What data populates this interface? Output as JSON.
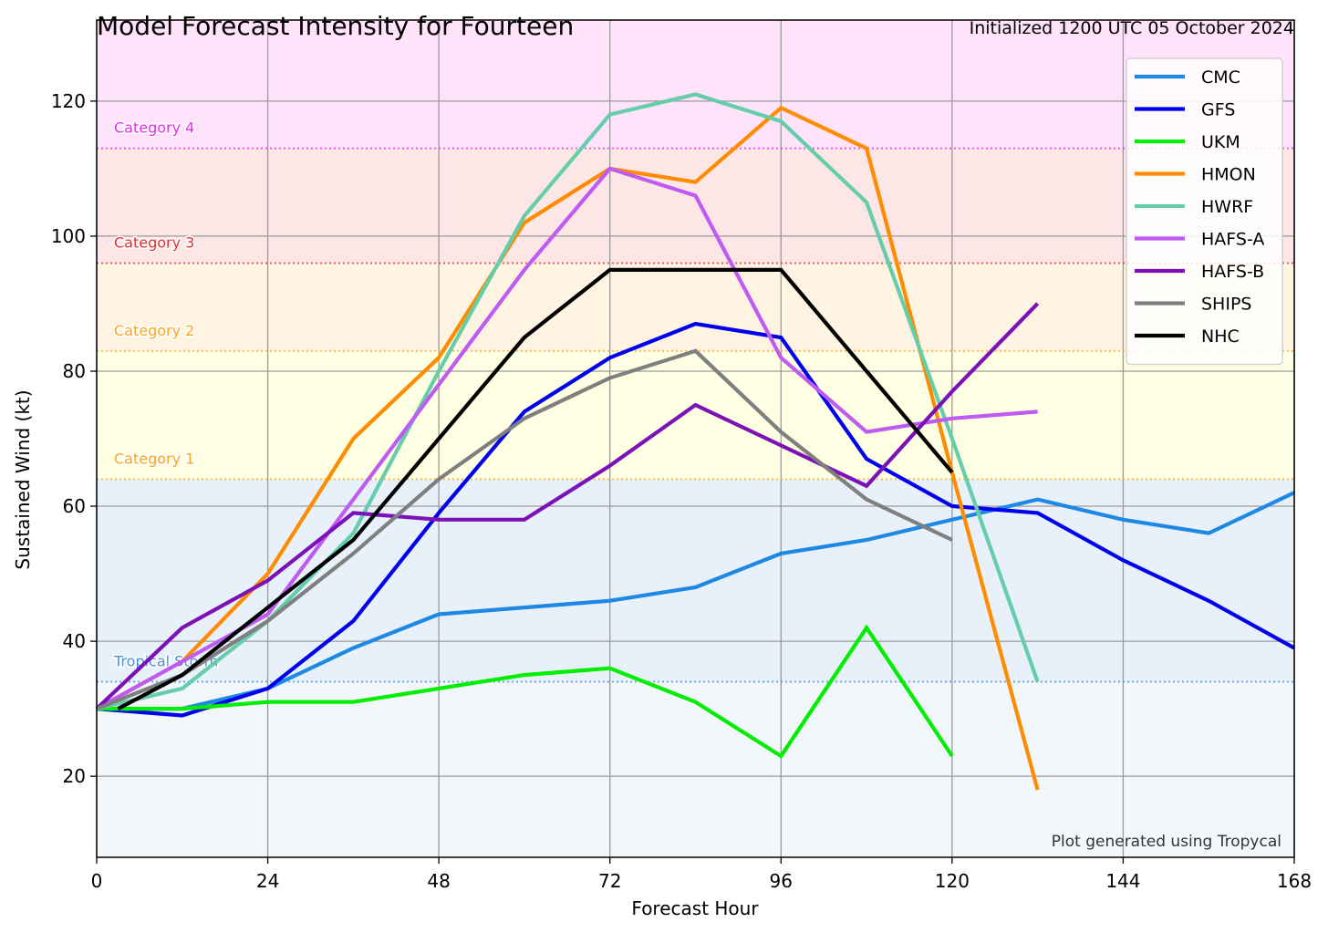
{
  "chart_data": {
    "type": "line",
    "title": "Model Forecast Intensity for Fourteen",
    "subtitle": "Initialized 1200 UTC 05 October 2024",
    "xlabel": "Forecast Hour",
    "ylabel": "Sustained Wind (kt)",
    "credit": "Plot generated using Tropycal",
    "xlim": [
      0,
      168
    ],
    "ylim": [
      8,
      132
    ],
    "xticks": [
      0,
      24,
      48,
      72,
      96,
      120,
      144,
      168
    ],
    "yticks": [
      20,
      40,
      60,
      80,
      100,
      120
    ],
    "grid": true,
    "legend_position": "top-right",
    "bands": [
      {
        "from": 8,
        "to": 34,
        "color": "#f1f7fb"
      },
      {
        "from": 34,
        "to": 64,
        "color": "#e8f1f9"
      },
      {
        "from": 64,
        "to": 83,
        "color": "#ffffe3"
      },
      {
        "from": 83,
        "to": 96,
        "color": "#fff3e2"
      },
      {
        "from": 96,
        "to": 113,
        "color": "#fce6e6"
      },
      {
        "from": 113,
        "to": 132,
        "color": "#ffe3fb"
      }
    ],
    "thresholds": [
      {
        "label": "Tropical Storm",
        "value": 34,
        "color": "#4a90d9"
      },
      {
        "label": "Category 1",
        "value": 64,
        "color": "#f5a623"
      },
      {
        "label": "Category 2",
        "value": 83,
        "color": "#f5a623"
      },
      {
        "label": "Category 3",
        "value": 96,
        "color": "#e03030"
      },
      {
        "label": "Category 4",
        "value": 113,
        "color": "#e22ee8"
      }
    ],
    "series": [
      {
        "name": "CMC",
        "color": "#1e88e5",
        "x": [
          0,
          12,
          24,
          36,
          48,
          60,
          72,
          84,
          96,
          108,
          120,
          132,
          144,
          156,
          168
        ],
        "y": [
          30,
          30,
          33,
          39,
          44,
          45,
          46,
          48,
          53,
          55,
          58,
          61,
          58,
          56,
          62
        ]
      },
      {
        "name": "GFS",
        "color": "#0000ee",
        "x": [
          0,
          12,
          24,
          36,
          48,
          60,
          72,
          84,
          96,
          108,
          120,
          132,
          144,
          156,
          168
        ],
        "y": [
          30,
          29,
          33,
          43,
          59,
          74,
          82,
          87,
          85,
          67,
          60,
          59,
          52,
          46,
          39
        ]
      },
      {
        "name": "UKM",
        "color": "#00ee00",
        "x": [
          0,
          12,
          24,
          36,
          48,
          60,
          72,
          84,
          96,
          108,
          120
        ],
        "y": [
          30,
          30,
          31,
          31,
          33,
          35,
          36,
          31,
          23,
          42,
          23
        ]
      },
      {
        "name": "HMON",
        "color": "#ff8c00",
        "x": [
          0,
          12,
          24,
          36,
          48,
          60,
          72,
          84,
          96,
          108,
          120,
          132
        ],
        "y": [
          30,
          37,
          50,
          70,
          82,
          102,
          110,
          108,
          119,
          113,
          65,
          18
        ]
      },
      {
        "name": "HWRF",
        "color": "#66cdaa",
        "x": [
          0,
          12,
          24,
          36,
          48,
          60,
          72,
          84,
          96,
          108,
          120,
          132
        ],
        "y": [
          30,
          33,
          43,
          56,
          80,
          103,
          118,
          121,
          117,
          105,
          70,
          34
        ]
      },
      {
        "name": "HAFS-A",
        "color": "#bf5af2",
        "x": [
          0,
          12,
          24,
          36,
          48,
          60,
          72,
          84,
          96,
          108,
          120,
          132
        ],
        "y": [
          30,
          37,
          44,
          61,
          78,
          95,
          110,
          106,
          82,
          71,
          73,
          74
        ]
      },
      {
        "name": "HAFS-B",
        "color": "#7b12b8",
        "x": [
          0,
          12,
          24,
          36,
          48,
          60,
          72,
          84,
          96,
          108,
          120,
          132
        ],
        "y": [
          30,
          42,
          49,
          59,
          58,
          58,
          66,
          75,
          69,
          63,
          77,
          90
        ]
      },
      {
        "name": "SHIPS",
        "color": "#7f7f7f",
        "x": [
          0,
          12,
          24,
          36,
          48,
          60,
          72,
          84,
          96,
          108,
          120
        ],
        "y": [
          30,
          35,
          43,
          53,
          64,
          73,
          79,
          83,
          71,
          61,
          55
        ]
      },
      {
        "name": "NHC",
        "color": "#000000",
        "x": [
          3,
          12,
          24,
          36,
          48,
          60,
          72,
          84,
          96,
          108,
          120
        ],
        "y": [
          30,
          35,
          45,
          55,
          70,
          85,
          95,
          95,
          95,
          80,
          65
        ]
      }
    ]
  }
}
